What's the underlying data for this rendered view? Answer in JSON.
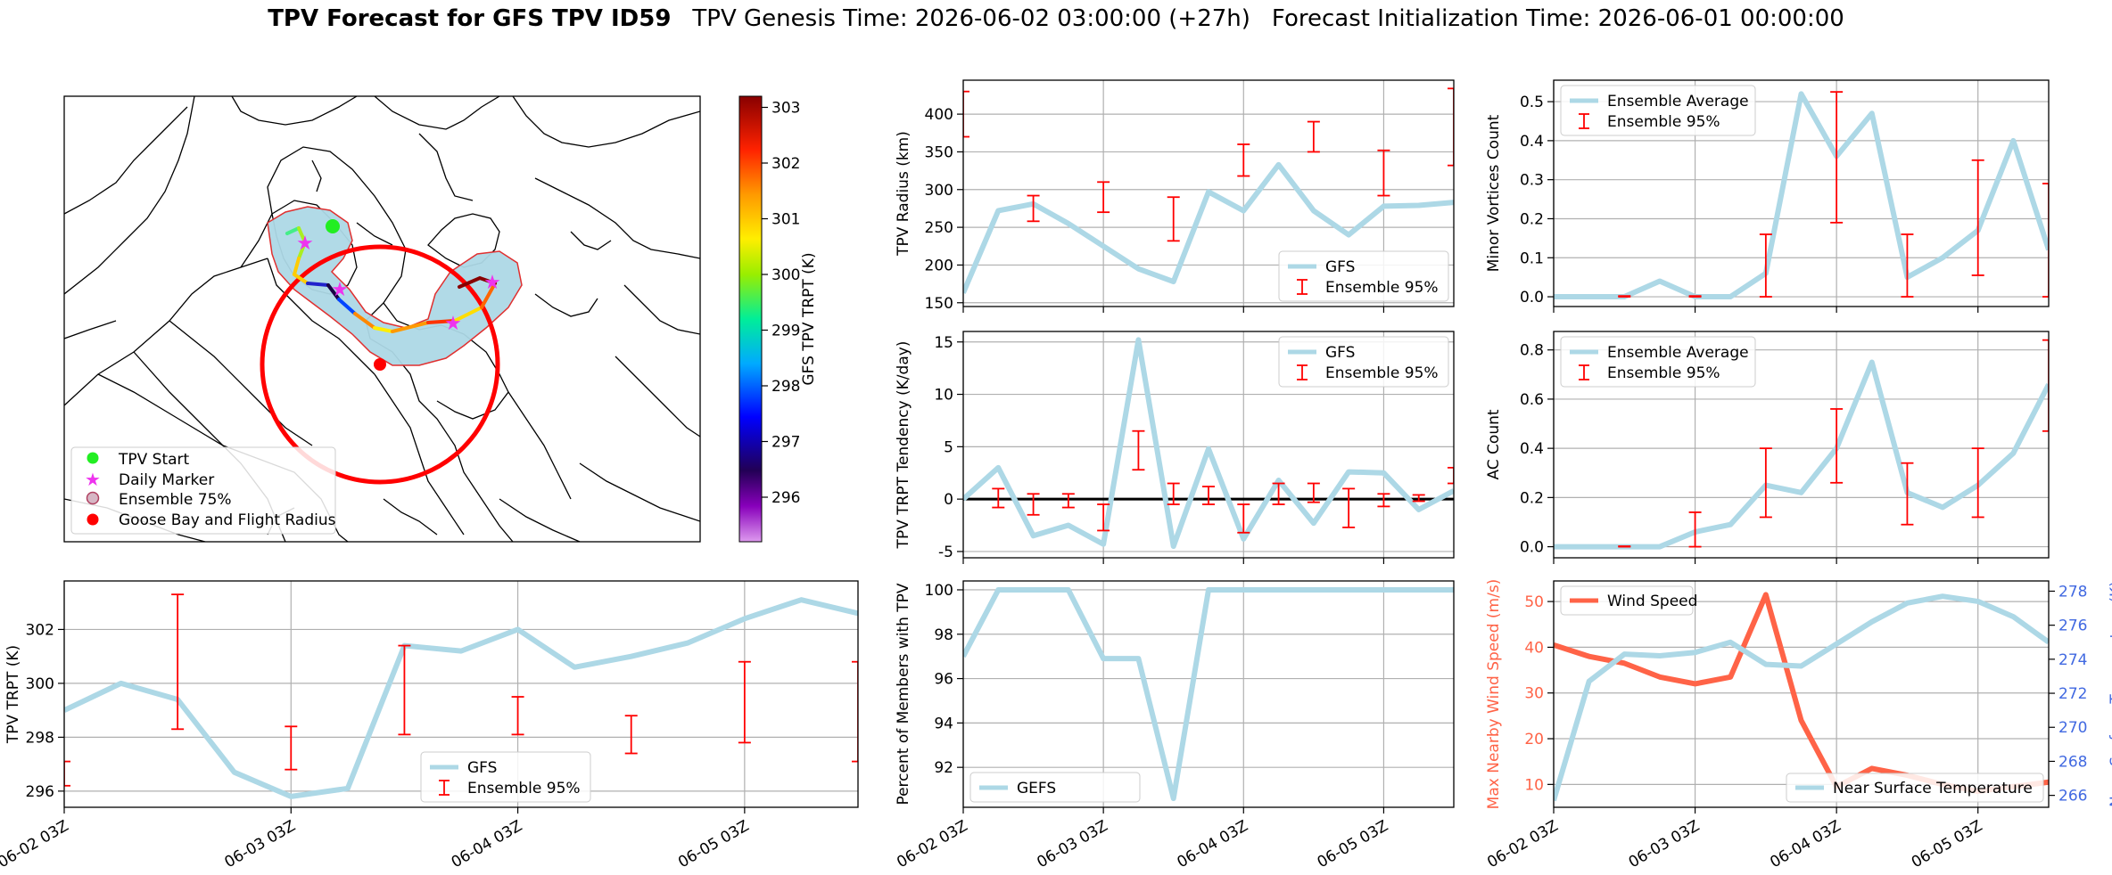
{
  "title": {
    "main": "TPV Forecast for GFS TPV ID59",
    "genesis": "TPV Genesis Time: 2026-06-02 03:00:00 (+27h)",
    "init": "Forecast Initialization Time: 2026-06-01 00:00:00"
  },
  "colors": {
    "gfs_line": "#add8e6",
    "error_bar": "#ff0000",
    "wind": "#ff6347",
    "temp_axis": "#4169e1",
    "grid": "#b0b0b0"
  },
  "chart_data": [
    {
      "id": "map",
      "type": "map",
      "colorbar": {
        "label": "GFS TPV TRPT (K)",
        "ticks": [
          296,
          297,
          298,
          299,
          300,
          301,
          302,
          303
        ],
        "range": [
          295.2,
          303.2
        ]
      },
      "legend": [
        "TPV Start",
        "Daily Marker",
        "Ensemble 75%",
        "Goose Bay and Flight Radius"
      ],
      "legend_placement": "lower-left"
    },
    {
      "id": "trpt",
      "type": "line",
      "ylabel": "TPV TRPT (K)",
      "ylim": [
        295.4,
        303.8
      ],
      "yticks": [
        296,
        298,
        300,
        302
      ],
      "x": [
        0,
        0.25,
        0.5,
        0.75,
        1,
        1.25,
        1.5,
        1.75,
        2,
        2.25,
        2.5,
        2.75,
        3,
        3.25,
        3.5
      ],
      "series": [
        {
          "name": "GFS",
          "values": [
            299.0,
            300.0,
            299.4,
            296.7,
            295.8,
            296.1,
            301.4,
            301.2,
            302.0,
            300.6,
            301.0,
            301.5,
            302.4,
            303.1,
            302.6
          ]
        }
      ],
      "errorbars": [
        [
          0,
          296.2,
          297.1
        ],
        [
          0.5,
          298.3,
          303.3
        ],
        [
          1,
          296.8,
          298.4
        ],
        [
          1.5,
          298.1,
          301.4
        ],
        [
          2,
          298.1,
          299.5
        ],
        [
          2.5,
          297.4,
          298.8
        ],
        [
          3,
          297.8,
          300.8
        ],
        [
          3.5,
          297.1,
          300.8
        ]
      ],
      "legend": [
        "GFS",
        "Ensemble 95%"
      ],
      "legend_placement": "lower-center"
    },
    {
      "id": "radius",
      "type": "line",
      "ylabel": "TPV Radius (km)",
      "ylim": [
        145,
        445
      ],
      "yticks": [
        150,
        200,
        250,
        300,
        350,
        400
      ],
      "x": [
        0,
        0.25,
        0.5,
        0.75,
        1,
        1.25,
        1.5,
        1.75,
        2,
        2.25,
        2.5,
        2.75,
        3,
        3.25,
        3.5
      ],
      "series": [
        {
          "name": "GFS",
          "values": [
            163,
            272,
            281,
            255,
            225,
            195,
            178,
            297,
            272,
            333,
            272,
            240,
            278,
            279,
            283
          ]
        }
      ],
      "errorbars": [
        [
          0,
          370,
          430
        ],
        [
          0.5,
          258,
          292
        ],
        [
          1,
          270,
          310
        ],
        [
          1.5,
          232,
          290
        ],
        [
          2,
          318,
          360
        ],
        [
          2.5,
          350,
          390
        ],
        [
          3,
          292,
          352
        ],
        [
          3.5,
          332,
          434
        ]
      ],
      "legend": [
        "GFS",
        "Ensemble 95%"
      ],
      "legend_placement": "lower-right"
    },
    {
      "id": "tendency",
      "type": "line",
      "ylabel": "TPV TRPT Tendency (K/day)",
      "ylim": [
        -5.6,
        16
      ],
      "yticks": [
        -5,
        0,
        5,
        10,
        15
      ],
      "zero_line": true,
      "x": [
        0,
        0.25,
        0.5,
        0.75,
        1,
        1.25,
        1.5,
        1.75,
        2,
        2.25,
        2.5,
        2.75,
        3,
        3.25,
        3.5
      ],
      "series": [
        {
          "name": "GFS",
          "values": [
            0,
            3.0,
            -3.5,
            -2.5,
            -4.3,
            15.2,
            -4.5,
            4.8,
            -3.8,
            1.8,
            -2.3,
            2.6,
            2.5,
            -1.0,
            0.8
          ]
        }
      ],
      "errorbars": [
        [
          0.25,
          -0.8,
          1.0
        ],
        [
          0.5,
          -1.5,
          0.5
        ],
        [
          0.75,
          -0.8,
          0.5
        ],
        [
          1,
          -3.0,
          -0.5
        ],
        [
          1.25,
          2.8,
          6.5
        ],
        [
          1.5,
          -0.5,
          1.5
        ],
        [
          1.75,
          -0.5,
          1.2
        ],
        [
          2,
          -3.2,
          -0.5
        ],
        [
          2.25,
          -0.5,
          1.5
        ],
        [
          2.5,
          -0.3,
          1.5
        ],
        [
          2.75,
          -2.7,
          1.0
        ],
        [
          3,
          -0.7,
          0.5
        ],
        [
          3.25,
          -0.2,
          0.4
        ],
        [
          3.5,
          1.5,
          3.0
        ]
      ],
      "legend": [
        "GFS",
        "Ensemble 95%"
      ],
      "legend_placement": "upper-right"
    },
    {
      "id": "percent",
      "type": "line",
      "ylabel": "Percent of Members with TPV",
      "ylim": [
        90.2,
        100.4
      ],
      "yticks": [
        92,
        94,
        96,
        98,
        100
      ],
      "x": [
        0,
        0.25,
        0.5,
        0.75,
        1,
        1.25,
        1.5,
        1.75,
        2,
        2.25,
        2.5,
        2.75,
        3,
        3.25,
        3.5
      ],
      "series": [
        {
          "name": "GEFS",
          "values": [
            97,
            100,
            100,
            100,
            96.9,
            96.9,
            90.6,
            100,
            100,
            100,
            100,
            100,
            100,
            100,
            100
          ]
        }
      ],
      "legend": [
        "GEFS"
      ],
      "legend_placement": "lower-left"
    },
    {
      "id": "minor",
      "type": "line",
      "ylabel": "Minor Vortices Count",
      "ylim": [
        -0.025,
        0.555
      ],
      "yticks": [
        0.0,
        0.1,
        0.2,
        0.3,
        0.4,
        0.5
      ],
      "x": [
        0,
        0.25,
        0.5,
        0.75,
        1,
        1.25,
        1.5,
        1.75,
        2,
        2.25,
        2.5,
        2.75,
        3,
        3.25,
        3.5
      ],
      "series": [
        {
          "name": "Ensemble Average",
          "values": [
            0,
            0,
            0,
            0.04,
            0,
            0,
            0.06,
            0.52,
            0.36,
            0.47,
            0.05,
            0.1,
            0.17,
            0.4,
            0.12
          ]
        }
      ],
      "errorbars": [
        [
          0.5,
          0,
          0.002
        ],
        [
          1,
          0,
          0.002
        ],
        [
          1.5,
          0,
          0.16
        ],
        [
          2,
          0.19,
          0.525
        ],
        [
          2.5,
          0,
          0.16
        ],
        [
          3,
          0.055,
          0.35
        ],
        [
          3.5,
          0,
          0.29
        ]
      ],
      "legend": [
        "Ensemble Average",
        "Ensemble 95%"
      ],
      "legend_placement": "upper-left"
    },
    {
      "id": "ac",
      "type": "line",
      "ylabel": "AC Count",
      "ylim": [
        -0.045,
        0.875
      ],
      "yticks": [
        0.0,
        0.2,
        0.4,
        0.6,
        0.8
      ],
      "x": [
        0,
        0.25,
        0.5,
        0.75,
        1,
        1.25,
        1.5,
        1.75,
        2,
        2.25,
        2.5,
        2.75,
        3,
        3.25,
        3.5
      ],
      "series": [
        {
          "name": "Ensemble Average",
          "values": [
            0,
            0,
            0,
            0,
            0.06,
            0.09,
            0.25,
            0.22,
            0.4,
            0.75,
            0.22,
            0.16,
            0.25,
            0.38,
            0.66
          ]
        }
      ],
      "errorbars": [
        [
          0.5,
          0,
          0.002
        ],
        [
          1,
          0,
          0.14
        ],
        [
          1.5,
          0.12,
          0.4
        ],
        [
          2,
          0.26,
          0.56
        ],
        [
          2.5,
          0.09,
          0.34
        ],
        [
          3,
          0.12,
          0.4
        ],
        [
          3.5,
          0.47,
          0.84
        ]
      ],
      "legend": [
        "Ensemble Average",
        "Ensemble 95%"
      ],
      "legend_placement": "upper-left"
    },
    {
      "id": "wind",
      "type": "line",
      "ylabel": "Max Nearby Wind Speed (m/s)",
      "ylabel_right": "Near Surface Temperature (K)",
      "ylim": [
        5,
        54.5
      ],
      "yticks": [
        10,
        20,
        30,
        40,
        50
      ],
      "ylim_right": [
        265.3,
        278.6
      ],
      "yticks_right": [
        266,
        268,
        270,
        272,
        274,
        276,
        278
      ],
      "x": [
        0,
        0.25,
        0.5,
        0.75,
        1,
        1.25,
        1.5,
        1.75,
        2,
        2.25,
        2.5,
        2.75,
        3,
        3.25,
        3.5
      ],
      "series": [
        {
          "name": "Wind Speed",
          "axis": "left",
          "values": [
            40.5,
            38,
            36.5,
            33.5,
            32,
            33.5,
            51.5,
            24,
            9.5,
            13.5,
            12,
            10,
            8.5,
            9.5,
            10.5
          ]
        },
        {
          "name": "Near Surface Temperature",
          "axis": "right",
          "values": [
            265.7,
            272.7,
            274.3,
            274.2,
            274.4,
            275,
            273.7,
            273.6,
            274.9,
            276.2,
            277.3,
            277.7,
            277.4,
            276.5,
            275
          ]
        }
      ],
      "legend": [
        "Wind Speed",
        "Near Surface Temperature"
      ]
    }
  ],
  "xticks": [
    "06-02 03Z",
    "06-03 03Z",
    "06-04 03Z",
    "06-05 03Z"
  ],
  "xtick_values": [
    0,
    1,
    2,
    3
  ]
}
